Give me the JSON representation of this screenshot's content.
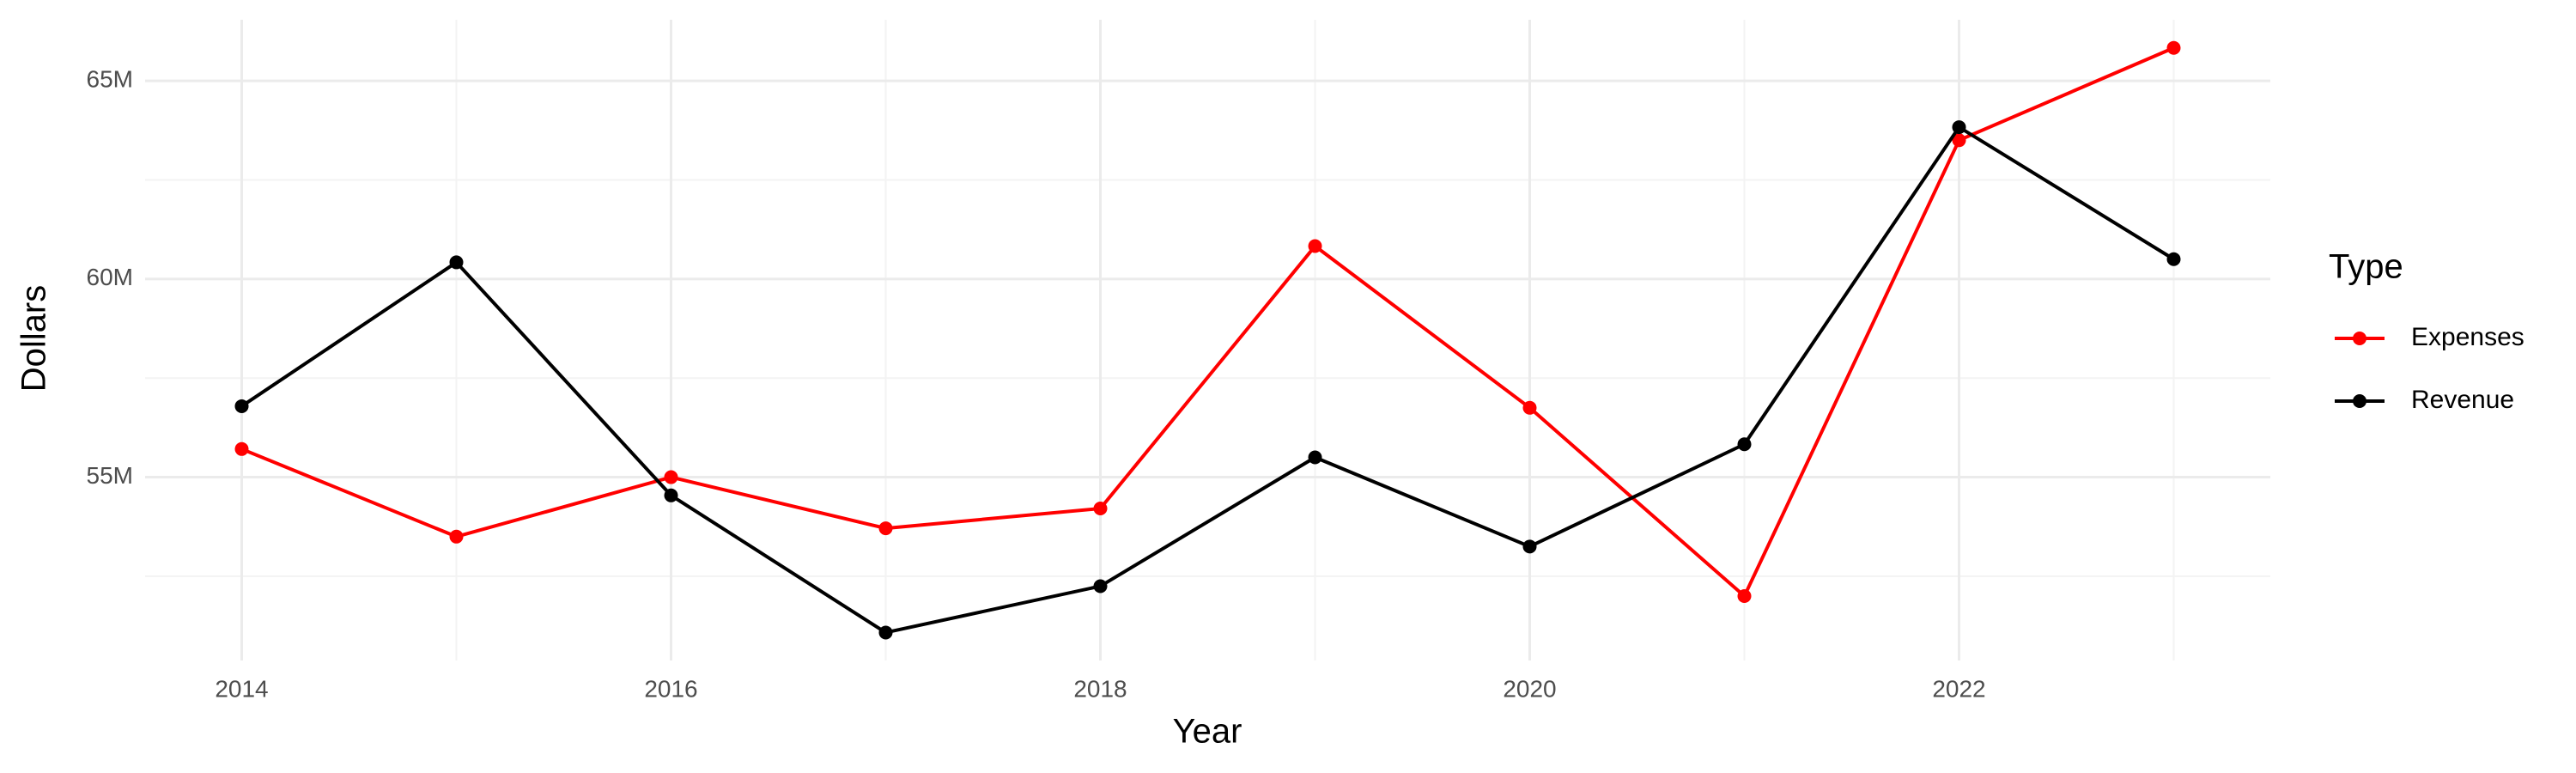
{
  "chart_data": {
    "type": "line",
    "x_label": "Year",
    "y_label": "Dollars",
    "legend_title": "Type",
    "legend_position": "right",
    "x": [
      2014,
      2015,
      2016,
      2017,
      2018,
      2019,
      2020,
      2021,
      2022,
      2023
    ],
    "series": [
      {
        "name": "Expenses",
        "color": "#ff0000",
        "values": [
          55710000,
          53500000,
          55000000,
          53710000,
          54210000,
          60830000,
          56750000,
          52000000,
          63500000,
          65830000
        ]
      },
      {
        "name": "Revenue",
        "color": "#000000",
        "values": [
          56790000,
          60420000,
          54540000,
          51080000,
          52250000,
          55500000,
          53250000,
          55830000,
          63830000,
          60500000
        ]
      }
    ],
    "xlim": [
      2013.55,
      2023.45
    ],
    "xticks": [
      2014,
      2016,
      2018,
      2020,
      2022
    ],
    "ylim": [
      50375000,
      66540000
    ],
    "yticks": [
      {
        "value": 55000000,
        "label": "55M"
      },
      {
        "value": 60000000,
        "label": "60M"
      },
      {
        "value": 65000000,
        "label": "65M"
      }
    ],
    "grid": true
  }
}
